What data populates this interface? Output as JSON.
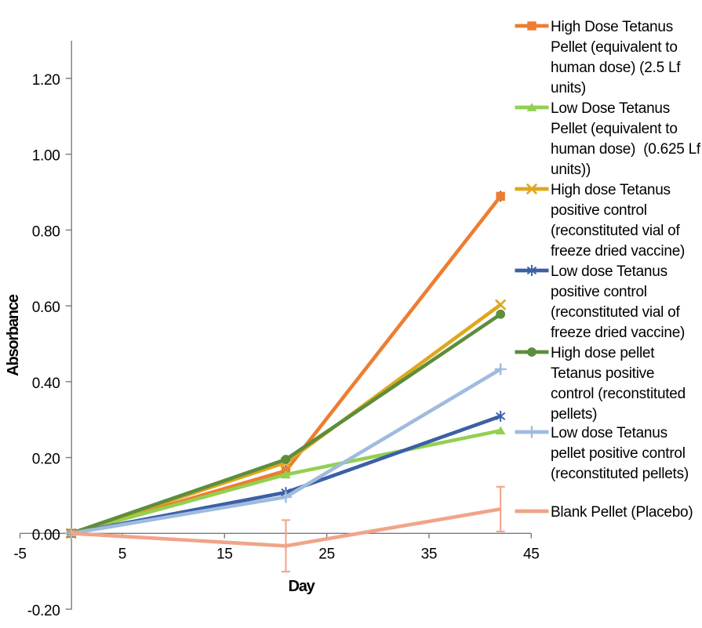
{
  "chart_data": {
    "type": "line",
    "title": "",
    "xlabel": "Day",
    "ylabel": "Absorbance",
    "x": [
      0,
      21,
      42
    ],
    "xlim": [
      -5,
      45
    ],
    "ylim": [
      -0.2,
      1.3
    ],
    "x_ticks": [
      "-5",
      "5",
      "15",
      "25",
      "35",
      "45"
    ],
    "x_tick_values": [
      -5,
      5,
      15,
      25,
      35,
      45
    ],
    "y_ticks": [
      "-0.20",
      "0.00",
      "0.20",
      "0.40",
      "0.60",
      "0.80",
      "1.00",
      "1.20"
    ],
    "y_tick_values": [
      -0.2,
      0.0,
      0.2,
      0.4,
      0.6,
      0.8,
      1.0,
      1.2
    ],
    "grid": false,
    "legend_position": "right",
    "axis_color": "#7a7a7a",
    "series": [
      {
        "name": "High Dose Tetanus Pellet (equivalent to human dose) (2.5 Lf units)",
        "legend_lines": [
          "High Dose Tetanus",
          "Pellet (equivalent to",
          "human dose) (2.5 Lf",
          "units)"
        ],
        "color": "#ED7D31",
        "marker": "square",
        "values": [
          0.0,
          0.165,
          0.889
        ],
        "error_bars": {
          "color": "#1a1a1a",
          "caps": false,
          "points": [
            {
              "x": 0,
              "center": 0.0,
              "delta": 0.015
            },
            {
              "x": 21,
              "center": 0.165,
              "delta": 0.015
            },
            {
              "x": 42,
              "center": 0.889,
              "delta": 0.014
            }
          ]
        }
      },
      {
        "name": "Low Dose Tetanus Pellet (equivalent to human dose)  (0.625 Lf units))",
        "legend_lines": [
          "Low Dose Tetanus",
          "Pellet (equivalent to",
          "human dose)  (0.625 Lf",
          "units))"
        ],
        "color": "#92D050",
        "marker": "triangle",
        "values": [
          0.0,
          0.155,
          0.271
        ],
        "error_bars": null
      },
      {
        "name": "High dose Tetanus positive control (reconstituted vial of freeze dried vaccine)",
        "legend_lines": [
          "High dose Tetanus",
          "positive control",
          "(reconstituted vial of",
          "freeze dried vaccine)"
        ],
        "color": "#DFA71E",
        "marker": "x",
        "values": [
          0.0,
          0.187,
          0.603
        ],
        "error_bars": null
      },
      {
        "name": "Low dose Tetanus positive control (reconstituted vial of freeze dried vaccine)",
        "legend_lines": [
          "Low dose Tetanus",
          "positive control",
          "(reconstituted vial of",
          "freeze dried vaccine)"
        ],
        "color": "#3C5FA6",
        "marker": "star",
        "values": [
          0.0,
          0.108,
          0.309
        ],
        "error_bars": {
          "color": "#1a1a1a",
          "caps": false,
          "points": [
            {
              "x": 0,
              "center": 0.0,
              "delta": 0.009
            },
            {
              "x": 21,
              "center": 0.108,
              "delta": 0.009
            },
            {
              "x": 42,
              "center": 0.309,
              "delta": 0.014
            }
          ]
        }
      },
      {
        "name": "High dose pellet Tetanus positive control (reconstituted pellets)",
        "legend_lines": [
          "High dose pellet",
          "Tetanus positive",
          "control (reconstituted",
          "pellets)"
        ],
        "color": "#5C8E3D",
        "marker": "circle",
        "values": [
          0.0,
          0.195,
          0.578
        ],
        "error_bars": null
      },
      {
        "name": "Low dose Tetanus pellet positive control (reconstituted pellets)",
        "legend_lines": [
          "Low dose Tetanus",
          "pellet positive control",
          "(reconstituted pellets)"
        ],
        "color": "#9FBBDE",
        "marker": "plus",
        "values": [
          0.0,
          0.096,
          0.433
        ],
        "error_bars": null
      },
      {
        "name": "Blank Pellet (Placebo)",
        "legend_lines": [
          "Blank Pellet (Placebo)"
        ],
        "color": "#F0A489",
        "marker": "none",
        "values": [
          0.0,
          -0.033,
          0.064
        ],
        "error_bars": {
          "color": "#F0A489",
          "caps": true,
          "points": [
            {
              "x": 0,
              "center": 0.0,
              "delta": 0.006
            },
            {
              "x": 21,
              "center": -0.033,
              "delta": 0.068
            },
            {
              "x": 42,
              "center": 0.064,
              "delta": 0.059
            }
          ]
        }
      }
    ]
  }
}
